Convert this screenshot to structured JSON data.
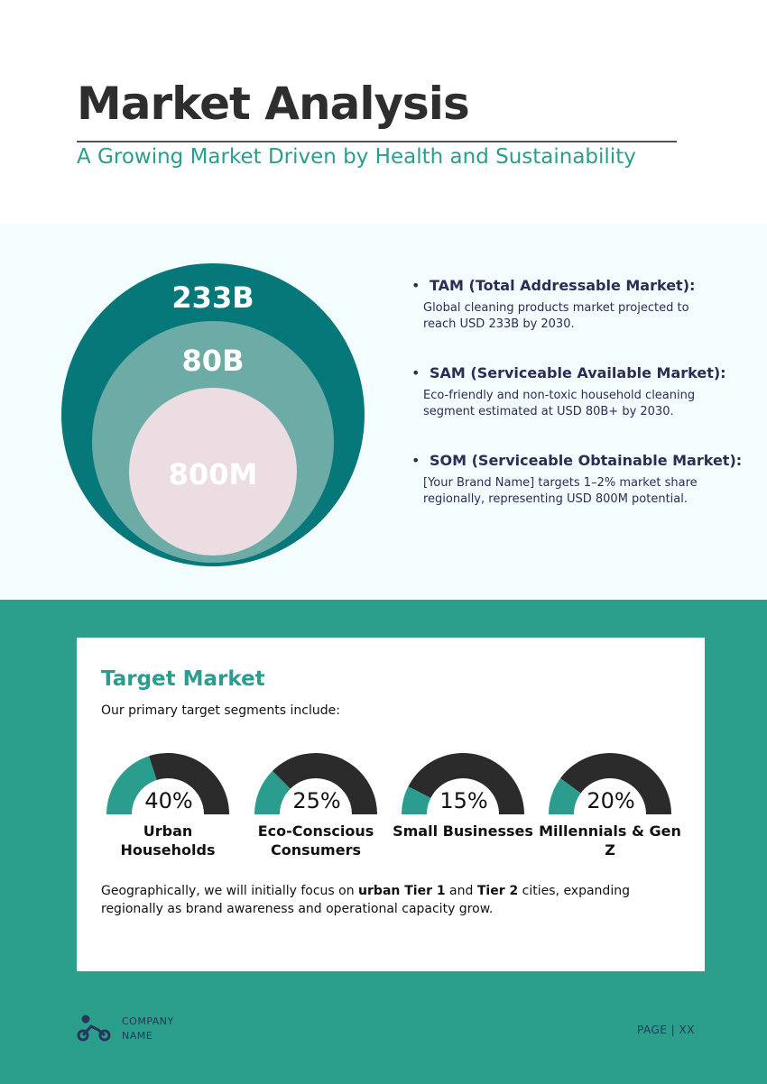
{
  "header": {
    "title": "Market Analysis",
    "subtitle": "A Growing Market Driven by Health and Sustainability"
  },
  "market_size": {
    "circles": [
      "233B",
      "80B",
      "800M"
    ],
    "items": [
      {
        "heading": "TAM (Total Addressable Market):",
        "lines": [
          "Global cleaning products market projected to",
          "reach USD 233B by 2030."
        ]
      },
      {
        "heading": "SAM (Serviceable Available Market):",
        "lines": [
          "Eco-friendly and non-toxic household cleaning",
          "segment estimated at USD 80B+ by 2030."
        ]
      },
      {
        "heading": "SOM (Serviceable Obtainable Market):",
        "lines": [
          "[Your Brand Name] targets 1–2% market share",
          "regionally, representing USD 800M potential."
        ]
      }
    ]
  },
  "target_market": {
    "title": "Target Market",
    "intro": "Our primary target segments include:",
    "gauges": {
      "type": "gauge",
      "categories": [
        "Urban Households",
        "Eco-Conscious Consumers",
        "Small Businesses",
        "Millennials & Gen Z"
      ],
      "values": [
        40,
        25,
        15,
        20
      ],
      "value_labels": [
        "40%",
        "25%",
        "15%",
        "20%"
      ],
      "color": "#2a9d8f",
      "track_color": "#2b2b2b"
    },
    "geo_text": [
      "Geographically, we will initially focus on ",
      "urban Tier 1",
      " and ",
      "Tier 2",
      " cities, expanding regionally as brand awareness and operational capacity grow."
    ]
  },
  "footer": {
    "company": [
      "COMPANY",
      "NAME"
    ],
    "page": "PAGE | XX"
  }
}
